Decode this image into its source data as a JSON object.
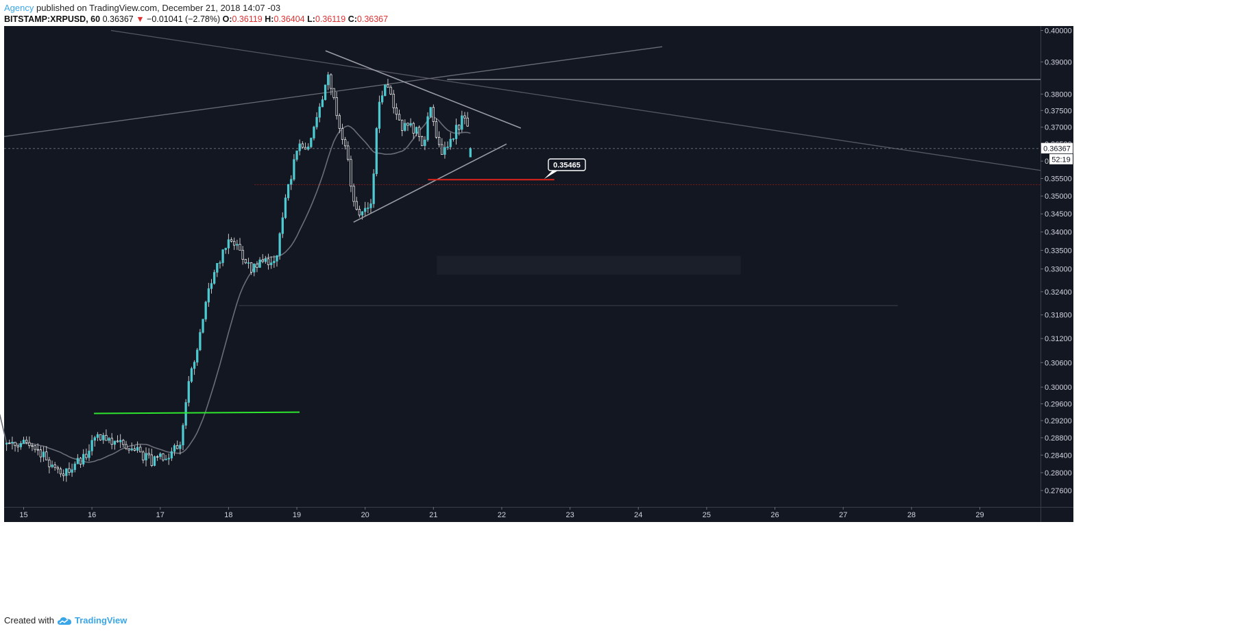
{
  "header": {
    "author": "Agency",
    "published_text": "published on TradingView.com, December 21, 2018 14:07 -03",
    "symbol": "BITSTAMP:XRPUSD, 60",
    "last": "0.36367",
    "arrow": "▼",
    "change": "−0.01041 (−2.78%)",
    "o_label": "O:",
    "o_value": "0.36119",
    "h_label": "H:",
    "h_value": "0.36404",
    "l_label": "L:",
    "l_value": "0.36119",
    "c_label": "C:",
    "c_value": "0.36367"
  },
  "footer": {
    "created_with": "Created with",
    "brand": "TradingView"
  },
  "colors": {
    "background": "#131722",
    "candle_up": "#4ec9d0",
    "candle_down": "#ffffff",
    "wick": "#c8c8c8",
    "ma": "#6b6e78",
    "trendline": "#9a9ca4",
    "support_red": "#e0241b",
    "red_dotted": "#8b1a1a",
    "green_line": "#2ee62e",
    "axis_text": "#d1d4dc",
    "brand": "#3aa6e8"
  },
  "chart_data": {
    "type": "candlestick",
    "title": "BITSTAMP:XRPUSD, 60",
    "x_ticks": [
      "15",
      "16",
      "17",
      "18",
      "19",
      "20",
      "21",
      "22",
      "23",
      "24",
      "25",
      "26",
      "27",
      "28",
      "29"
    ],
    "y_ticks": [
      "0.40000",
      "0.39000",
      "0.38000",
      "0.37500",
      "0.37000",
      "0.36500",
      "0.36000",
      "0.35500",
      "0.35000",
      "0.34500",
      "0.34000",
      "0.33500",
      "0.33000",
      "0.32400",
      "0.31800",
      "0.31200",
      "0.30600",
      "0.30000",
      "0.29600",
      "0.29200",
      "0.28800",
      "0.28400",
      "0.28000",
      "0.27600"
    ],
    "price_scale": "log",
    "last_price_label": "0.36367",
    "countdown_label": "52:19",
    "annotation_price": "0.35465",
    "close_anchors": [
      {
        "t": 14.75,
        "p": 0.2865
      },
      {
        "t": 15.0,
        "p": 0.287
      },
      {
        "t": 15.3,
        "p": 0.2835
      },
      {
        "t": 15.6,
        "p": 0.2795
      },
      {
        "t": 15.9,
        "p": 0.284
      },
      {
        "t": 16.1,
        "p": 0.2885
      },
      {
        "t": 16.5,
        "p": 0.286
      },
      {
        "t": 16.9,
        "p": 0.2825
      },
      {
        "t": 17.3,
        "p": 0.286
      },
      {
        "t": 17.4,
        "p": 0.299
      },
      {
        "t": 17.7,
        "p": 0.323
      },
      {
        "t": 18.0,
        "p": 0.339
      },
      {
        "t": 18.3,
        "p": 0.33
      },
      {
        "t": 18.7,
        "p": 0.333
      },
      {
        "t": 18.85,
        "p": 0.351
      },
      {
        "t": 19.0,
        "p": 0.363
      },
      {
        "t": 19.2,
        "p": 0.366
      },
      {
        "t": 19.45,
        "p": 0.385
      },
      {
        "t": 19.6,
        "p": 0.373
      },
      {
        "t": 19.75,
        "p": 0.36
      },
      {
        "t": 19.85,
        "p": 0.345
      },
      {
        "t": 20.1,
        "p": 0.348
      },
      {
        "t": 20.2,
        "p": 0.378
      },
      {
        "t": 20.3,
        "p": 0.384
      },
      {
        "t": 20.5,
        "p": 0.371
      },
      {
        "t": 20.75,
        "p": 0.369
      },
      {
        "t": 20.85,
        "p": 0.364
      },
      {
        "t": 20.95,
        "p": 0.376
      },
      {
        "t": 21.1,
        "p": 0.362
      },
      {
        "t": 21.35,
        "p": 0.37
      },
      {
        "t": 21.45,
        "p": 0.373
      },
      {
        "t": 21.58,
        "p": 0.3637
      }
    ]
  }
}
